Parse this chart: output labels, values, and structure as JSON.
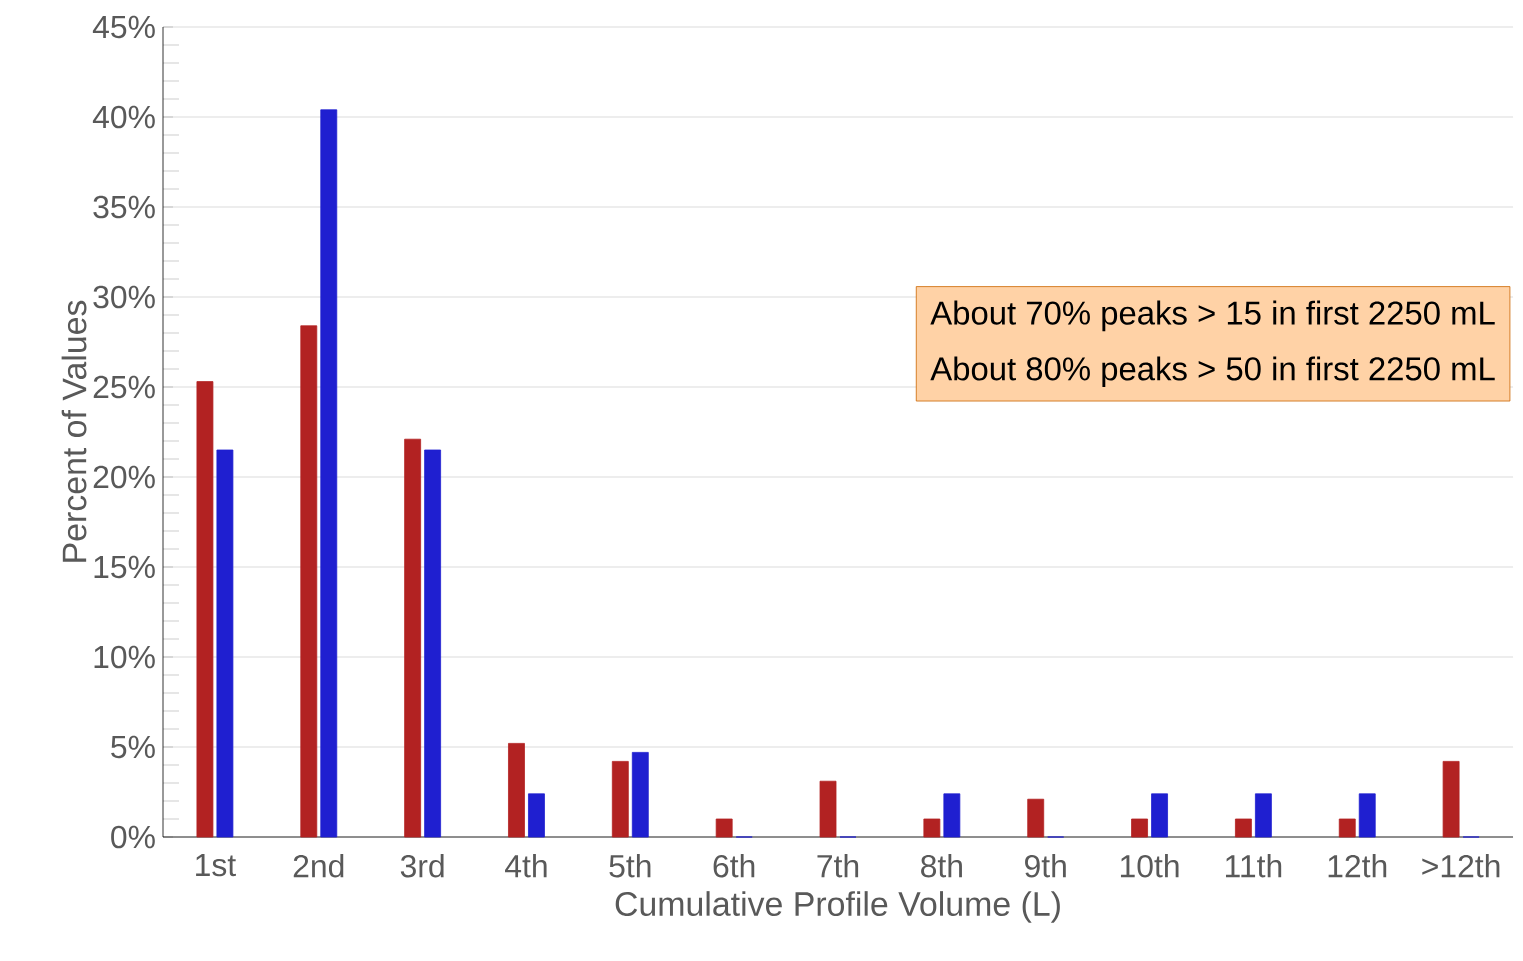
{
  "chart_data": {
    "type": "bar",
    "xlabel": "Cumulative Profile Volume (L)",
    "ylabel": "Percent of Values",
    "categories": [
      "1st",
      "2nd",
      "3rd",
      "4th",
      "5th",
      "6th",
      "7th",
      "8th",
      "9th",
      "10th",
      "11th",
      "12th",
      ">12th"
    ],
    "series": [
      {
        "color": "#b22222",
        "values": [
          25.3,
          28.4,
          22.1,
          5.2,
          4.2,
          1.0,
          3.1,
          1.0,
          2.1,
          1.0,
          1.0,
          1.0,
          4.2
        ]
      },
      {
        "color": "#1f1fd0",
        "values": [
          21.5,
          40.4,
          21.5,
          2.4,
          4.7,
          0,
          0,
          2.4,
          0,
          2.4,
          2.4,
          2.4,
          0
        ]
      }
    ],
    "ylim": [
      0,
      45
    ],
    "yticks": [
      {
        "value": 0,
        "label": "0%"
      },
      {
        "value": 5,
        "label": "5%"
      },
      {
        "value": 10,
        "label": "10%"
      },
      {
        "value": 15,
        "label": "15%"
      },
      {
        "value": 20,
        "label": "20%"
      },
      {
        "value": 25,
        "label": "25%"
      },
      {
        "value": 30,
        "label": "30%"
      },
      {
        "value": 35,
        "label": "35%"
      },
      {
        "value": 40,
        "label": "40%"
      },
      {
        "value": 45,
        "label": "45%"
      }
    ],
    "grid": "y",
    "annotations": [
      "About 70% peaks > 15 in first 2250 mL",
      "About 80% peaks > 50 in first 2250 mL"
    ]
  }
}
